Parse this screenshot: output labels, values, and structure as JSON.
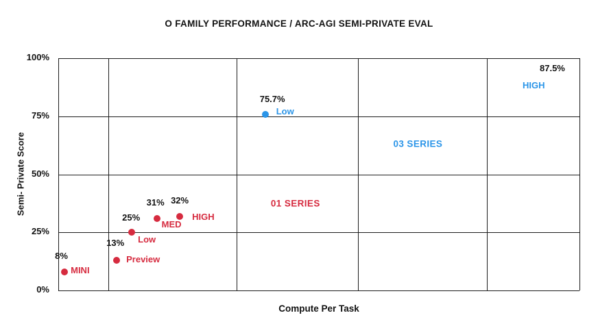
{
  "chart_data": {
    "type": "scatter",
    "title": "O FAMILY PERFORMANCE / ARC-AGI SEMI-PRIVATE EVAL",
    "xlabel": "Compute Per Task",
    "ylabel": "Semi- Private Score",
    "ylim": [
      0,
      100
    ],
    "grid": true,
    "y_ticks": [
      {
        "value": 0,
        "label": "0%"
      },
      {
        "value": 25,
        "label": "25%"
      },
      {
        "value": 50,
        "label": "50%"
      },
      {
        "value": 75,
        "label": "75%"
      },
      {
        "value": 100,
        "label": "100%"
      }
    ],
    "x_gridlines": [
      0,
      0.096,
      0.342,
      0.575,
      0.822,
      1
    ],
    "colors": {
      "o1_series": "#d62b3f",
      "o3_series": "#2b95e8",
      "text": "#111111",
      "grid": "#1c1c1c"
    },
    "series": [
      {
        "name": "01 SERIES",
        "color_key": "o1_series",
        "points": [
          {
            "model": "MINI",
            "score": 8,
            "score_label": "8%",
            "x": 0.012,
            "dot": true,
            "value_offset": [
              -14,
              -31
            ],
            "name_offset": [
              9,
              -10
            ]
          },
          {
            "model": "Preview",
            "score": 13,
            "score_label": "13%",
            "x": 0.112,
            "dot": true,
            "value_offset": [
              -15,
              -33
            ],
            "name_offset": [
              14,
              -9
            ]
          },
          {
            "model": "Low",
            "score": 25,
            "score_label": "25%",
            "x": 0.141,
            "dot": true,
            "value_offset": [
              -14,
              -29
            ],
            "name_offset": [
              9,
              3
            ]
          },
          {
            "model": "MED",
            "score": 31,
            "score_label": "31%",
            "x": 0.189,
            "dot": true,
            "value_offset": [
              -15,
              -31
            ],
            "name_offset": [
              7,
              1
            ]
          },
          {
            "model": "HIGH",
            "score": 32,
            "score_label": "32%",
            "x": 0.233,
            "dot": true,
            "value_offset": [
              -13,
              -31
            ],
            "name_offset": [
              18,
              -7
            ]
          }
        ]
      },
      {
        "name": "03 SERIES",
        "color_key": "o3_series",
        "points": [
          {
            "model": "Low",
            "score": 75.7,
            "score_label": "75.7%",
            "x": 0.397,
            "dot": true,
            "value_offset": [
              -8,
              -30
            ],
            "name_offset": [
              16,
              -12
            ]
          },
          {
            "model": "HIGH",
            "score": 87.5,
            "score_label": "87.5%",
            "x": 0.95,
            "dot": false,
            "value_offset": [
              -20,
              -35
            ],
            "name_offset": [
              -45,
              -10
            ]
          }
        ]
      }
    ],
    "annotations": [
      {
        "text": "01 SERIES",
        "color_key": "o1_series",
        "x": 0.455,
        "y": 37.5
      },
      {
        "text": "03 SERIES",
        "color_key": "o3_series",
        "x": 0.69,
        "y": 63
      }
    ]
  }
}
